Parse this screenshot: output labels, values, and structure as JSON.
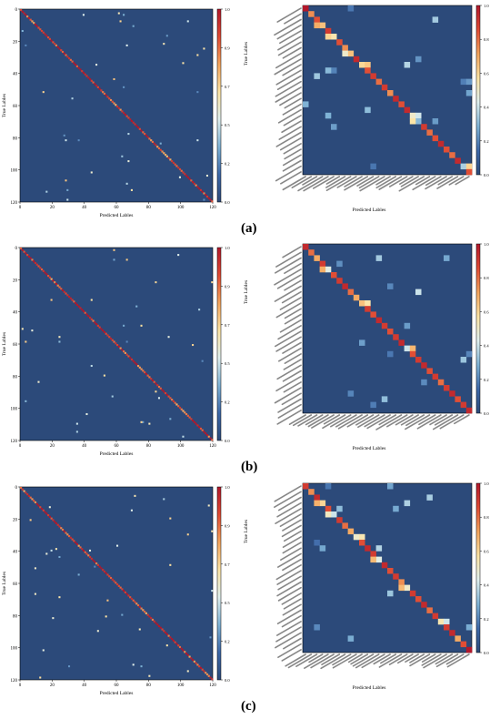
{
  "figure": {
    "colors": {
      "background_cell": "#2c4a7a",
      "colormap": [
        "#2c4a7a",
        "#3d68a8",
        "#7fb3d6",
        "#e0f0ef",
        "#fde4a4",
        "#f4a45c",
        "#e04a33",
        "#b2182b"
      ]
    },
    "panels": [
      {
        "label": "(a)",
        "full": {
          "xlabel": "Predicted Lables",
          "ylabel": "True Lables",
          "ticks": [
            "0",
            "20",
            "40",
            "60",
            "80",
            "100",
            "120"
          ],
          "colorbar_ticks": [
            "0.0",
            "0.2",
            "0.5",
            "0.7",
            "0.9",
            "1.0"
          ]
        },
        "zoom": {
          "xlabel": "Predicted Lables",
          "ylabel": "True Lables",
          "colorbar_ticks": [
            "0.0",
            "0.2",
            "0.4",
            "0.6",
            "0.8",
            "1.0"
          ]
        }
      },
      {
        "label": "(b)",
        "full": {
          "xlabel": "Predicted Lables",
          "ylabel": "True Lables",
          "ticks": [
            "0",
            "20",
            "40",
            "60",
            "80",
            "100",
            "120"
          ],
          "colorbar_ticks": [
            "0.0",
            "0.2",
            "0.5",
            "0.7",
            "0.9",
            "1.0"
          ]
        },
        "zoom": {
          "xlabel": "Predicted Lables",
          "ylabel": "True Lables",
          "colorbar_ticks": [
            "0.0",
            "0.2",
            "0.4",
            "0.6",
            "0.8",
            "1.0"
          ]
        }
      },
      {
        "label": "(c)",
        "full": {
          "xlabel": "Predicted Lables",
          "ylabel": "True Lables",
          "ticks": [
            "0",
            "20",
            "40",
            "60",
            "80",
            "100",
            "120"
          ],
          "colorbar_ticks": [
            "0.0",
            "0.2",
            "0.5",
            "0.7",
            "0.9",
            "1.0"
          ]
        },
        "zoom": {
          "xlabel": "Predicted Lables",
          "ylabel": "True Lables",
          "colorbar_ticks": [
            "0.0",
            "0.2",
            "0.4",
            "0.6",
            "0.8",
            "1.0"
          ]
        }
      }
    ]
  },
  "chart_data": [
    {
      "type": "heatmap",
      "panel": "(a)",
      "xlabel": "Predicted Lables",
      "ylabel": "True Lables",
      "n_classes": 120,
      "axis_range": [
        0,
        120
      ],
      "value_range": [
        0.0,
        1.0
      ],
      "diagonal_sample": [
        {
          "class": 0,
          "value": 0.95
        },
        {
          "class": 10,
          "value": 0.85
        },
        {
          "class": 20,
          "value": 0.9
        },
        {
          "class": 30,
          "value": 0.95
        },
        {
          "class": 40,
          "value": 1.0
        },
        {
          "class": 50,
          "value": 0.9
        },
        {
          "class": 60,
          "value": 0.85
        },
        {
          "class": 70,
          "value": 0.95
        },
        {
          "class": 80,
          "value": 0.9
        },
        {
          "class": 90,
          "value": 0.75
        },
        {
          "class": 100,
          "value": 0.95
        },
        {
          "class": 110,
          "value": 0.9
        },
        {
          "class": 119,
          "value": 0.95
        }
      ]
    },
    {
      "type": "heatmap",
      "panel": "(a) zoom",
      "xlabel": "Predicted Lables",
      "ylabel": "True Lables",
      "n_classes": 30,
      "value_range": [
        0.0,
        1.0
      ],
      "diagonal": [
        1.0,
        0.75,
        0.85,
        0.65,
        0.9,
        0.55,
        0.85,
        0.75,
        0.65,
        0.95,
        0.6,
        0.85,
        0.9,
        0.8,
        0.9,
        0.75,
        0.95,
        0.85,
        0.95,
        0.5,
        0.3,
        0.9,
        0.8,
        0.85,
        0.95,
        0.85,
        0.8,
        0.95,
        0.35,
        0.85
      ]
    },
    {
      "type": "heatmap",
      "panel": "(b)",
      "xlabel": "Predicted Lables",
      "ylabel": "True Lables",
      "n_classes": 120,
      "axis_range": [
        0,
        120
      ],
      "value_range": [
        0.0,
        1.0
      ],
      "diagonal_sample": [
        {
          "class": 0,
          "value": 0.9
        },
        {
          "class": 10,
          "value": 0.95
        },
        {
          "class": 20,
          "value": 0.85
        },
        {
          "class": 30,
          "value": 1.0
        },
        {
          "class": 40,
          "value": 0.9
        },
        {
          "class": 50,
          "value": 0.95
        },
        {
          "class": 60,
          "value": 0.9
        },
        {
          "class": 70,
          "value": 0.85
        },
        {
          "class": 80,
          "value": 0.95
        },
        {
          "class": 90,
          "value": 0.9
        },
        {
          "class": 100,
          "value": 0.8
        },
        {
          "class": 110,
          "value": 0.95
        },
        {
          "class": 119,
          "value": 0.9
        }
      ]
    },
    {
      "type": "heatmap",
      "panel": "(b) zoom",
      "xlabel": "Predicted Lables",
      "ylabel": "True Lables",
      "n_classes": 30,
      "value_range": [
        0.0,
        1.0
      ],
      "diagonal": [
        0.95,
        0.8,
        0.7,
        0.9,
        0.45,
        0.85,
        0.9,
        0.95,
        0.8,
        0.7,
        0.65,
        0.9,
        0.85,
        0.95,
        0.9,
        0.85,
        0.9,
        0.95,
        0.4,
        0.85,
        0.9,
        0.95,
        0.85,
        0.9,
        0.8,
        0.9,
        0.95,
        0.85,
        0.9,
        0.95
      ]
    },
    {
      "type": "heatmap",
      "panel": "(c)",
      "xlabel": "Predicted Lables",
      "ylabel": "True Lables",
      "n_classes": 120,
      "axis_range": [
        0,
        120
      ],
      "value_range": [
        0.0,
        1.0
      ],
      "diagonal_sample": [
        {
          "class": 0,
          "value": 0.85
        },
        {
          "class": 10,
          "value": 0.9
        },
        {
          "class": 20,
          "value": 0.95
        },
        {
          "class": 30,
          "value": 0.85
        },
        {
          "class": 40,
          "value": 0.9
        },
        {
          "class": 50,
          "value": 0.95
        },
        {
          "class": 60,
          "value": 1.0
        },
        {
          "class": 70,
          "value": 0.9
        },
        {
          "class": 80,
          "value": 0.85
        },
        {
          "class": 90,
          "value": 0.95
        },
        {
          "class": 100,
          "value": 0.9
        },
        {
          "class": 110,
          "value": 0.85
        },
        {
          "class": 119,
          "value": 0.95
        }
      ]
    },
    {
      "type": "heatmap",
      "panel": "(c) zoom",
      "xlabel": "Predicted Lables",
      "ylabel": "True Lables",
      "n_classes": 30,
      "value_range": [
        0.0,
        1.0
      ],
      "diagonal": [
        0.9,
        0.75,
        0.95,
        0.6,
        0.85,
        0.4,
        0.9,
        0.8,
        0.7,
        0.5,
        0.85,
        0.95,
        0.9,
        0.45,
        0.95,
        0.85,
        0.9,
        0.75,
        0.5,
        0.9,
        0.85,
        0.95,
        0.8,
        0.9,
        0.55,
        0.9,
        0.95,
        0.7,
        0.85,
        1.0
      ]
    }
  ]
}
